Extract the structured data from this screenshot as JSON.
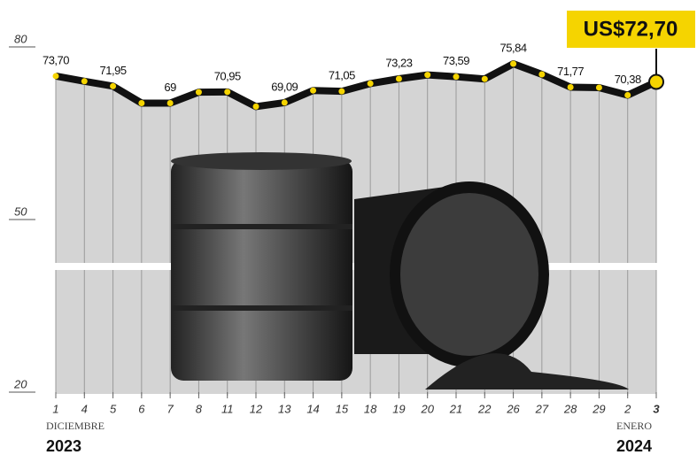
{
  "chart_data": {
    "type": "line",
    "categories": [
      "1",
      "4",
      "5",
      "6",
      "7",
      "8",
      "11",
      "12",
      "13",
      "14",
      "15",
      "18",
      "19",
      "20",
      "21",
      "22",
      "26",
      "27",
      "28",
      "29",
      "2",
      "3"
    ],
    "values": [
      73.7,
      72.8,
      71.95,
      69,
      69,
      70.9,
      70.95,
      68.4,
      69.09,
      71.2,
      71.05,
      72.4,
      73.23,
      73.9,
      73.59,
      73.2,
      75.84,
      74.0,
      71.77,
      71.7,
      70.38,
      72.7
    ],
    "value_labels": [
      "73,70",
      null,
      "71,95",
      null,
      "69",
      null,
      "70,95",
      null,
      "69,09",
      null,
      "71,05",
      null,
      "73,23",
      null,
      "73,59",
      null,
      "75,84",
      null,
      "71,77",
      null,
      "70,38",
      "US$72,70"
    ],
    "color": "#111111",
    "marker_color": "#f5d400",
    "ylim": [
      20,
      80
    ],
    "yticks": [
      20,
      50,
      80
    ],
    "periods": [
      {
        "month": "DICIEMBRE",
        "year": "2023"
      },
      {
        "month": "ENERO",
        "year": "2024"
      }
    ]
  }
}
